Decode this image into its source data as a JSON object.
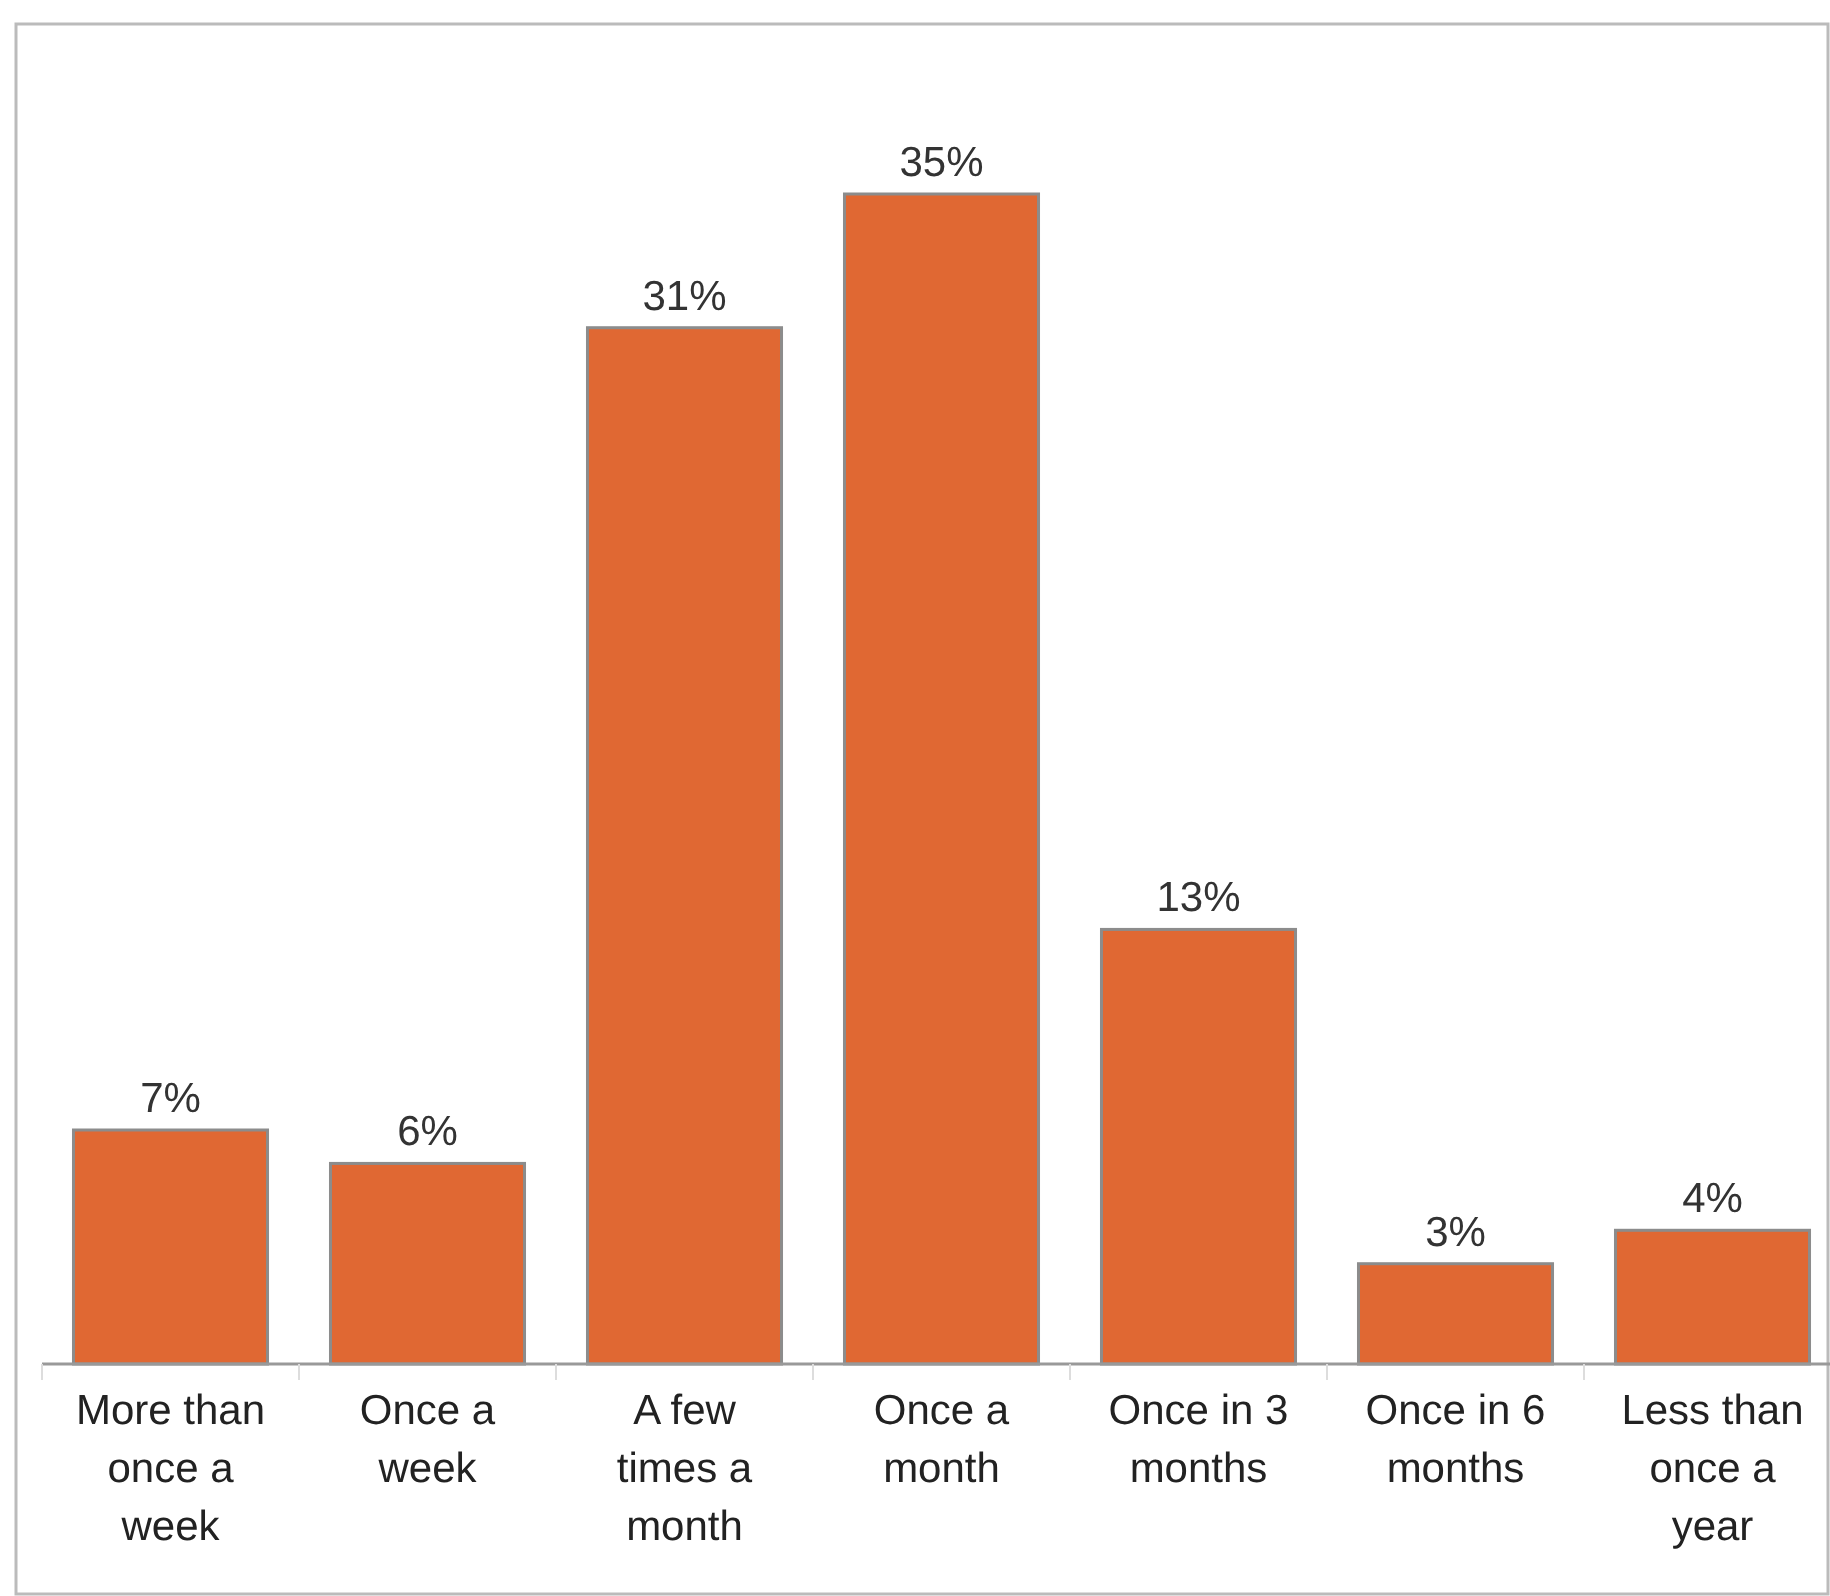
{
  "chart_data": {
    "type": "bar",
    "categories": [
      "More than once a week",
      "Once a week",
      "A few times a month",
      "Once a month",
      "Once in 3 months",
      "Once in 6 months",
      "Less than once a year"
    ],
    "values": [
      7,
      6,
      31,
      35,
      13,
      3,
      4
    ],
    "value_labels": [
      "7%",
      "6%",
      "31%",
      "35%",
      "13%",
      "3%",
      "4%"
    ],
    "color": "#e06833"
  }
}
